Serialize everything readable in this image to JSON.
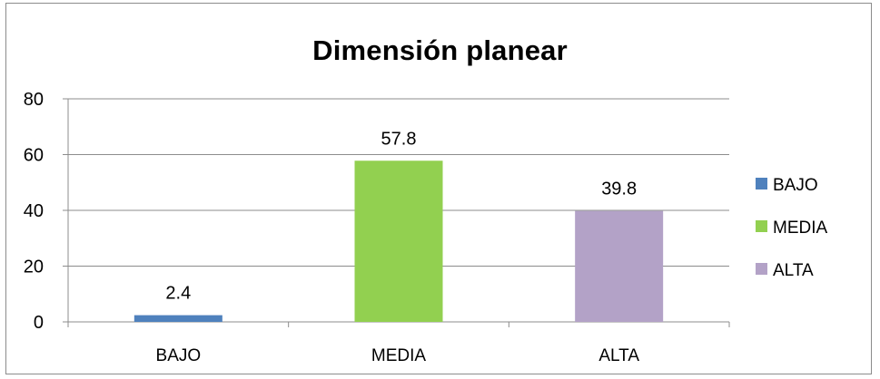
{
  "chart_data": {
    "type": "bar",
    "title": "Dimensión planear",
    "xlabel": "",
    "ylabel": "",
    "categories": [
      "BAJO",
      "MEDIA",
      "ALTA"
    ],
    "values": [
      2.4,
      57.8,
      39.8
    ],
    "data_labels": [
      "2.4",
      "57.8",
      "39.8"
    ],
    "colors": [
      "#4f81bd",
      "#92d050",
      "#b3a2c7"
    ],
    "ylim": [
      0,
      80
    ],
    "yticks": [
      "0",
      "20",
      "40",
      "60",
      "80"
    ],
    "grid": true,
    "legend": {
      "placement": "right",
      "entries": [
        "BAJO",
        "MEDIA",
        "ALTA"
      ]
    }
  }
}
